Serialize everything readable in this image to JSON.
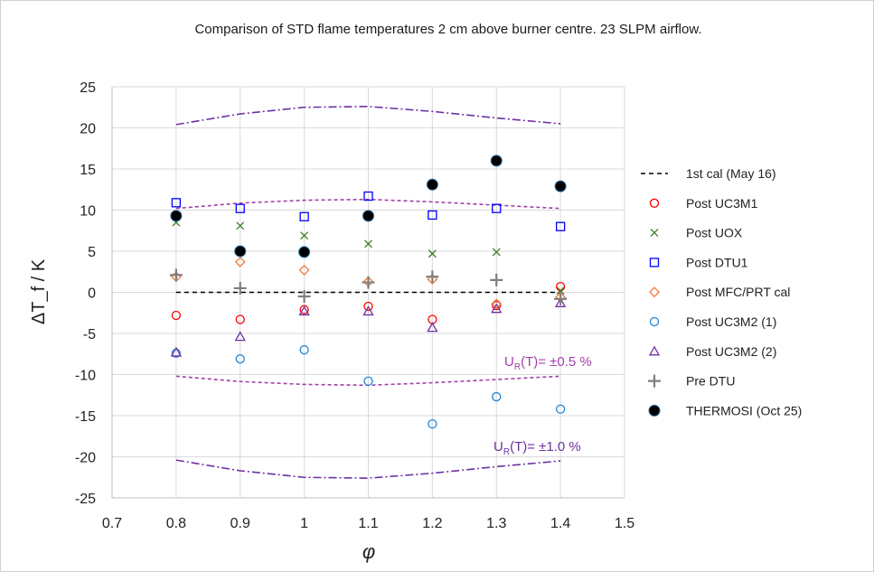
{
  "chart_data": {
    "type": "scatter",
    "title": "Comparison of STD flame temperatures 2 cm above burner centre. 23 SLPM airflow.",
    "xlabel": "φ",
    "ylabel": "ΔT_f / K",
    "xlim": [
      0.7,
      1.5
    ],
    "ylim": [
      -25,
      25
    ],
    "xticks": [
      "0.7",
      "0.8",
      "0.9",
      "1",
      "1.1",
      "1.2",
      "1.3",
      "1.4",
      "1.5"
    ],
    "yticks": [
      "25",
      "20",
      "15",
      "10",
      "5",
      "0",
      "-5",
      "-10",
      "-15",
      "-20",
      "-25"
    ],
    "grid": true,
    "legend_position": "right",
    "x": [
      0.8,
      0.9,
      1.0,
      1.1,
      1.2,
      1.3,
      1.4
    ],
    "reference": {
      "name": "1st cal (May 16)",
      "values": [
        0,
        0,
        0,
        0,
        0,
        0,
        0
      ],
      "color": "#000000"
    },
    "series": [
      {
        "name": "Post UC3M1",
        "marker": "circle",
        "color": "#ff0000",
        "values": [
          -2.8,
          -3.3,
          -2.1,
          -1.7,
          -3.3,
          -1.6,
          0.7
        ]
      },
      {
        "name": "Post UOX",
        "marker": "x",
        "color": "#3a7d22",
        "values": [
          8.5,
          8.1,
          6.9,
          5.9,
          4.7,
          4.9,
          0.2
        ]
      },
      {
        "name": "Post DTU1",
        "marker": "square",
        "color": "#0000ff",
        "values": [
          10.9,
          10.2,
          9.2,
          11.7,
          9.4,
          10.2,
          8.0
        ]
      },
      {
        "name": "Post MFC/PRT cal",
        "marker": "diamond",
        "color": "#f07a3c",
        "values": [
          1.9,
          3.7,
          2.7,
          1.3,
          1.6,
          -1.4,
          -0.6
        ]
      },
      {
        "name": "Post UC3M2 (1)",
        "marker": "circle",
        "color": "#1f86d8",
        "values": [
          -7.4,
          -8.1,
          -7.0,
          -10.8,
          -16.0,
          -12.7,
          -14.2
        ]
      },
      {
        "name": "Post UC3M2 (2)",
        "marker": "triangle",
        "color": "#7030a0",
        "values": [
          -7.3,
          -5.4,
          -2.3,
          -2.3,
          -4.3,
          -2.0,
          -1.3
        ]
      },
      {
        "name": "Pre DTU",
        "marker": "plus",
        "color": "#7f7f7f",
        "values": [
          2.1,
          0.5,
          -0.5,
          1.2,
          1.9,
          1.5,
          -0.8
        ]
      },
      {
        "name": "THERMOSI (Oct 25)",
        "marker": "dot",
        "color": "#000000",
        "values": [
          9.3,
          5.0,
          4.9,
          9.3,
          13.1,
          16.0,
          12.9
        ]
      }
    ],
    "bands": [
      {
        "label_main": "U",
        "label_sub": "R",
        "label_rest": "(T)= ±0.5 %",
        "style": "dash",
        "color": "#a040a8",
        "upper": [
          10.2,
          10.85,
          11.2,
          11.3,
          11.0,
          10.6,
          10.2
        ]
      },
      {
        "label_main": "U",
        "label_sub": "R",
        "label_rest": "(T)= ±1.0 %",
        "style": "dashdot",
        "color": "#7030a0",
        "upper": [
          20.4,
          21.7,
          22.5,
          22.6,
          22.0,
          21.2,
          20.5
        ]
      }
    ]
  }
}
